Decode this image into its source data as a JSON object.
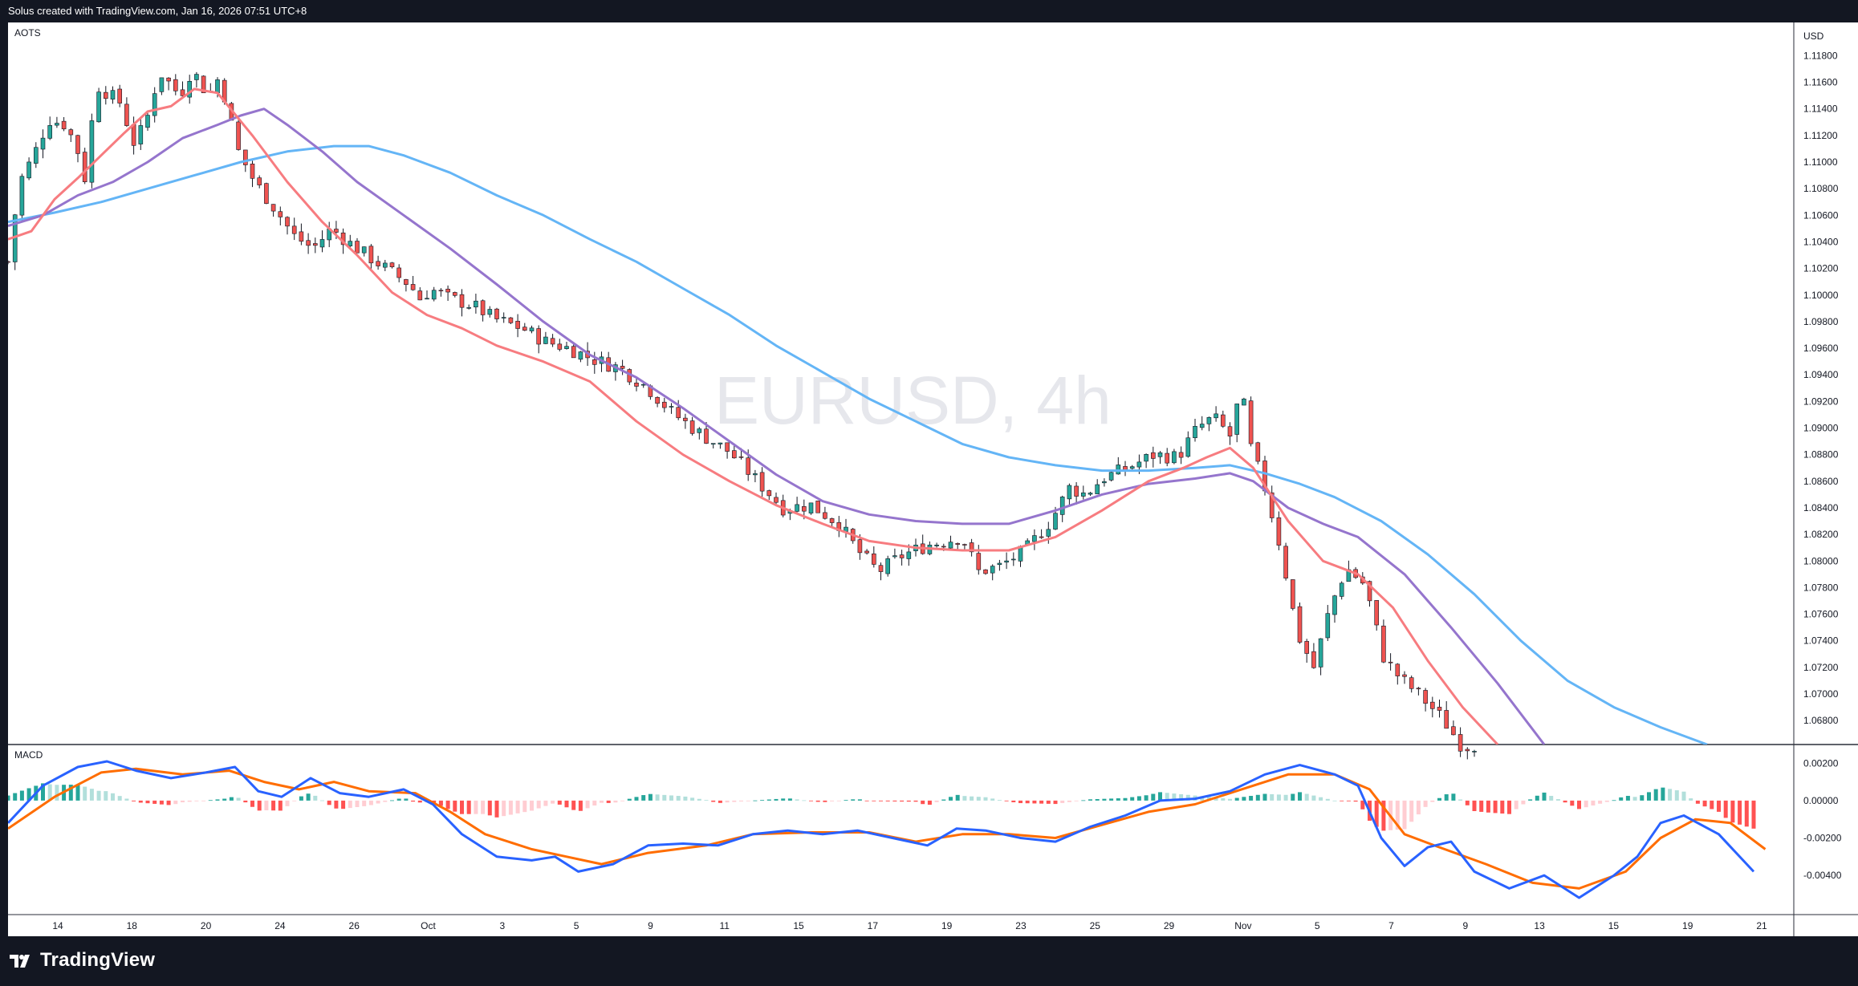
{
  "header": {
    "text": "Solus created with TradingView.com, Jan 16, 2026 07:51 UTC+8"
  },
  "footer": {
    "brand": "TradingView"
  },
  "chart_data": {
    "type": "candlestick",
    "symbol": "AOTS",
    "watermark": "EURUSD, 4h",
    "currency": "USD",
    "price_ylim": [
      1.0662,
      1.1205
    ],
    "price_ticks": [
      "1.11800",
      "1.11600",
      "1.11400",
      "1.11200",
      "1.11000",
      "1.10800",
      "1.10600",
      "1.10400",
      "1.10200",
      "1.10000",
      "1.09800",
      "1.09600",
      "1.09400",
      "1.09200",
      "1.09000",
      "1.08800",
      "1.08600",
      "1.08400",
      "1.08200",
      "1.08000",
      "1.07800",
      "1.07600",
      "1.07400",
      "1.07200",
      "1.07000",
      "1.06800"
    ],
    "x_ticks": [
      "14",
      "18",
      "20",
      "24",
      "26",
      "Oct",
      "3",
      "5",
      "9",
      "11",
      "15",
      "17",
      "19",
      "23",
      "25",
      "29",
      "Nov",
      "5",
      "7",
      "9",
      "13",
      "15",
      "19",
      "21"
    ],
    "colors": {
      "up": "#26a69a",
      "down": "#ef5350",
      "ma_fast": "#f77c80",
      "ma_mid": "#9575cd",
      "ma_slow": "#64b5f6",
      "macd": "#2962ff",
      "signal": "#ff6d00",
      "hist_up_strong": "#26a69a",
      "hist_up_weak": "#b2dfdb",
      "hist_down_strong": "#ff5252",
      "hist_down_weak": "#ffcdd2"
    },
    "price_path": [
      [
        0,
        1.1025
      ],
      [
        10,
        1.1085
      ],
      [
        22,
        1.1105
      ],
      [
        35,
        1.1132
      ],
      [
        50,
        1.1128
      ],
      [
        60,
        1.1108
      ],
      [
        66,
        1.1088
      ],
      [
        76,
        1.1158
      ],
      [
        96,
        1.1145
      ],
      [
        108,
        1.1115
      ],
      [
        118,
        1.1128
      ],
      [
        130,
        1.1168
      ],
      [
        148,
        1.115
      ],
      [
        158,
        1.117
      ],
      [
        172,
        1.115
      ],
      [
        182,
        1.1165
      ],
      [
        190,
        1.1135
      ],
      [
        198,
        1.1108
      ],
      [
        212,
        1.1085
      ],
      [
        232,
        1.1062
      ],
      [
        245,
        1.1045
      ],
      [
        262,
        1.1035
      ],
      [
        278,
        1.105
      ],
      [
        292,
        1.104
      ],
      [
        308,
        1.103
      ],
      [
        328,
        1.1018
      ],
      [
        345,
        1.1008
      ],
      [
        356,
        1.0995
      ],
      [
        362,
        1.1005
      ],
      [
        378,
        1.0998
      ],
      [
        400,
        1.0992
      ],
      [
        418,
        1.0982
      ],
      [
        442,
        1.0975
      ],
      [
        462,
        1.0965
      ],
      [
        482,
        1.096
      ],
      [
        502,
        1.0952
      ],
      [
        526,
        1.0945
      ],
      [
        550,
        1.093
      ],
      [
        570,
        1.0912
      ],
      [
        596,
        1.0895
      ],
      [
        620,
        1.0882
      ],
      [
        646,
        1.0858
      ],
      [
        666,
        1.084
      ],
      [
        690,
        1.0842
      ],
      [
        714,
        1.0828
      ],
      [
        730,
        1.0808
      ],
      [
        748,
        1.0792
      ],
      [
        768,
        1.0804
      ],
      [
        790,
        1.0812
      ],
      [
        820,
        1.0818
      ],
      [
        834,
        1.0792
      ],
      [
        852,
        1.0796
      ],
      [
        874,
        1.0808
      ],
      [
        896,
        1.083
      ],
      [
        912,
        1.0855
      ],
      [
        926,
        1.085
      ],
      [
        940,
        1.0862
      ],
      [
        962,
        1.087
      ],
      [
        985,
        1.088
      ],
      [
        1005,
        1.0878
      ],
      [
        1022,
        1.09
      ],
      [
        1036,
        1.0908
      ],
      [
        1050,
        1.0894
      ],
      [
        1060,
        1.093
      ],
      [
        1066,
        1.089
      ],
      [
        1080,
        1.0855
      ],
      [
        1094,
        1.0808
      ],
      [
        1108,
        1.0745
      ],
      [
        1122,
        1.072
      ],
      [
        1136,
        1.0765
      ],
      [
        1150,
        1.0795
      ],
      [
        1166,
        1.0782
      ],
      [
        1182,
        1.0728
      ],
      [
        1196,
        1.0712
      ],
      [
        1212,
        1.07
      ],
      [
        1232,
        1.0682
      ],
      [
        1250,
        1.066
      ],
      [
        1262,
        1.0662
      ]
    ],
    "ma_fast_path": [
      [
        0,
        1.1042
      ],
      [
        20,
        1.1048
      ],
      [
        40,
        1.1072
      ],
      [
        60,
        1.1088
      ],
      [
        80,
        1.1105
      ],
      [
        100,
        1.1122
      ],
      [
        120,
        1.1138
      ],
      [
        140,
        1.1142
      ],
      [
        160,
        1.1155
      ],
      [
        180,
        1.1152
      ],
      [
        210,
        1.112
      ],
      [
        240,
        1.1085
      ],
      [
        270,
        1.1055
      ],
      [
        300,
        1.103
      ],
      [
        330,
        1.1002
      ],
      [
        360,
        1.0985
      ],
      [
        390,
        1.0975
      ],
      [
        420,
        1.0962
      ],
      [
        460,
        1.095
      ],
      [
        500,
        1.0935
      ],
      [
        540,
        1.0905
      ],
      [
        580,
        1.088
      ],
      [
        620,
        1.086
      ],
      [
        660,
        1.0842
      ],
      [
        700,
        1.0828
      ],
      [
        740,
        1.0815
      ],
      [
        780,
        1.081
      ],
      [
        820,
        1.0808
      ],
      [
        860,
        1.0808
      ],
      [
        900,
        1.0818
      ],
      [
        940,
        1.0838
      ],
      [
        980,
        1.086
      ],
      [
        1010,
        1.087
      ],
      [
        1030,
        1.0878
      ],
      [
        1050,
        1.0885
      ],
      [
        1070,
        1.087
      ],
      [
        1100,
        1.083
      ],
      [
        1130,
        1.08
      ],
      [
        1160,
        1.079
      ],
      [
        1190,
        1.0765
      ],
      [
        1220,
        1.0725
      ],
      [
        1250,
        1.069
      ],
      [
        1280,
        1.0662
      ]
    ],
    "ma_mid_path": [
      [
        0,
        1.1052
      ],
      [
        30,
        1.106
      ],
      [
        60,
        1.1075
      ],
      [
        90,
        1.1085
      ],
      [
        120,
        1.11
      ],
      [
        150,
        1.1118
      ],
      [
        180,
        1.1128
      ],
      [
        200,
        1.1135
      ],
      [
        220,
        1.114
      ],
      [
        240,
        1.1128
      ],
      [
        270,
        1.1108
      ],
      [
        300,
        1.1085
      ],
      [
        340,
        1.106
      ],
      [
        380,
        1.1035
      ],
      [
        420,
        1.1008
      ],
      [
        460,
        1.098
      ],
      [
        500,
        1.0955
      ],
      [
        540,
        1.0938
      ],
      [
        580,
        1.0915
      ],
      [
        620,
        1.089
      ],
      [
        660,
        1.0865
      ],
      [
        700,
        1.0845
      ],
      [
        740,
        1.0835
      ],
      [
        780,
        1.083
      ],
      [
        820,
        1.0828
      ],
      [
        860,
        1.0828
      ],
      [
        900,
        1.0838
      ],
      [
        940,
        1.085
      ],
      [
        980,
        1.0858
      ],
      [
        1020,
        1.0862
      ],
      [
        1050,
        1.0866
      ],
      [
        1070,
        1.086
      ],
      [
        1100,
        1.084
      ],
      [
        1130,
        1.0828
      ],
      [
        1160,
        1.0818
      ],
      [
        1200,
        1.079
      ],
      [
        1240,
        1.075
      ],
      [
        1280,
        1.0708
      ],
      [
        1320,
        1.0662
      ]
    ],
    "ma_slow_path": [
      [
        0,
        1.1055
      ],
      [
        40,
        1.1062
      ],
      [
        80,
        1.107
      ],
      [
        120,
        1.108
      ],
      [
        160,
        1.109
      ],
      [
        200,
        1.11
      ],
      [
        240,
        1.1108
      ],
      [
        280,
        1.1112
      ],
      [
        310,
        1.1112
      ],
      [
        340,
        1.1105
      ],
      [
        380,
        1.1092
      ],
      [
        420,
        1.1075
      ],
      [
        460,
        1.106
      ],
      [
        500,
        1.1042
      ],
      [
        540,
        1.1025
      ],
      [
        580,
        1.1005
      ],
      [
        620,
        1.0985
      ],
      [
        660,
        1.0962
      ],
      [
        700,
        1.0942
      ],
      [
        740,
        1.0922
      ],
      [
        780,
        1.0905
      ],
      [
        820,
        1.0888
      ],
      [
        860,
        1.0878
      ],
      [
        900,
        1.0872
      ],
      [
        940,
        1.0868
      ],
      [
        980,
        1.0868
      ],
      [
        1020,
        1.087
      ],
      [
        1050,
        1.0872
      ],
      [
        1080,
        1.0866
      ],
      [
        1110,
        1.0858
      ],
      [
        1140,
        1.0848
      ],
      [
        1180,
        1.083
      ],
      [
        1220,
        1.0805
      ],
      [
        1260,
        1.0775
      ],
      [
        1300,
        1.074
      ],
      [
        1340,
        1.071
      ],
      [
        1380,
        1.069
      ],
      [
        1420,
        1.0675
      ],
      [
        1460,
        1.0662
      ]
    ],
    "macd_label": "MACD",
    "macd_ylim": [
      -0.0061,
      0.003
    ],
    "macd_ticks": [
      "0.00200",
      "0.00000",
      "-0.00200",
      "-0.00400"
    ],
    "macd_path": [
      [
        0,
        -0.0012
      ],
      [
        30,
        0.0008
      ],
      [
        60,
        0.0018
      ],
      [
        85,
        0.0021
      ],
      [
        110,
        0.0016
      ],
      [
        140,
        0.0012
      ],
      [
        170,
        0.0015
      ],
      [
        195,
        0.0018
      ],
      [
        215,
        0.0005
      ],
      [
        235,
        0.0002
      ],
      [
        260,
        0.0012
      ],
      [
        285,
        0.0004
      ],
      [
        310,
        0.0002
      ],
      [
        340,
        0.0006
      ],
      [
        365,
        -0.0002
      ],
      [
        390,
        -0.0018
      ],
      [
        420,
        -0.003
      ],
      [
        450,
        -0.0032
      ],
      [
        470,
        -0.003
      ],
      [
        490,
        -0.0038
      ],
      [
        520,
        -0.0034
      ],
      [
        550,
        -0.0024
      ],
      [
        580,
        -0.0023
      ],
      [
        610,
        -0.0024
      ],
      [
        640,
        -0.0018
      ],
      [
        670,
        -0.0016
      ],
      [
        700,
        -0.0018
      ],
      [
        730,
        -0.0016
      ],
      [
        760,
        -0.002
      ],
      [
        790,
        -0.0024
      ],
      [
        815,
        -0.0015
      ],
      [
        840,
        -0.0016
      ],
      [
        870,
        -0.002
      ],
      [
        900,
        -0.0022
      ],
      [
        930,
        -0.0014
      ],
      [
        960,
        -0.0008
      ],
      [
        990,
        0.0
      ],
      [
        1020,
        0.0001
      ],
      [
        1050,
        0.0005
      ],
      [
        1080,
        0.0014
      ],
      [
        1110,
        0.0019
      ],
      [
        1140,
        0.0014
      ],
      [
        1160,
        0.0008
      ],
      [
        1180,
        -0.002
      ],
      [
        1200,
        -0.0035
      ],
      [
        1220,
        -0.0025
      ],
      [
        1240,
        -0.0022
      ],
      [
        1260,
        -0.0038
      ],
      [
        1290,
        -0.0047
      ],
      [
        1320,
        -0.004
      ],
      [
        1350,
        -0.0052
      ],
      [
        1380,
        -0.004
      ],
      [
        1400,
        -0.003
      ],
      [
        1420,
        -0.0012
      ],
      [
        1440,
        -0.0008
      ],
      [
        1470,
        -0.0018
      ],
      [
        1500,
        -0.0038
      ]
    ],
    "signal_path": [
      [
        0,
        -0.0015
      ],
      [
        40,
        0.0002
      ],
      [
        80,
        0.0015
      ],
      [
        110,
        0.0017
      ],
      [
        150,
        0.0014
      ],
      [
        190,
        0.0016
      ],
      [
        220,
        0.001
      ],
      [
        250,
        0.0006
      ],
      [
        280,
        0.001
      ],
      [
        310,
        0.0005
      ],
      [
        350,
        0.0004
      ],
      [
        380,
        -0.0006
      ],
      [
        410,
        -0.0018
      ],
      [
        450,
        -0.0026
      ],
      [
        480,
        -0.003
      ],
      [
        510,
        -0.0034
      ],
      [
        550,
        -0.0028
      ],
      [
        600,
        -0.0024
      ],
      [
        640,
        -0.0018
      ],
      [
        690,
        -0.0017
      ],
      [
        740,
        -0.0017
      ],
      [
        780,
        -0.0022
      ],
      [
        820,
        -0.0018
      ],
      [
        860,
        -0.0018
      ],
      [
        900,
        -0.002
      ],
      [
        940,
        -0.0013
      ],
      [
        980,
        -0.0006
      ],
      [
        1020,
        -0.0002
      ],
      [
        1060,
        0.0006
      ],
      [
        1100,
        0.0014
      ],
      [
        1140,
        0.0014
      ],
      [
        1170,
        0.0006
      ],
      [
        1200,
        -0.0018
      ],
      [
        1230,
        -0.0025
      ],
      [
        1270,
        -0.0034
      ],
      [
        1310,
        -0.0044
      ],
      [
        1350,
        -0.0047
      ],
      [
        1390,
        -0.0038
      ],
      [
        1420,
        -0.002
      ],
      [
        1450,
        -0.001
      ],
      [
        1480,
        -0.0012
      ],
      [
        1510,
        -0.0026
      ]
    ]
  }
}
